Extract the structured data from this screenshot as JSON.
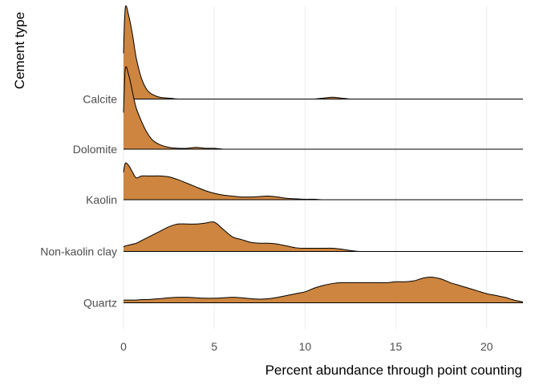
{
  "chart_data": {
    "type": "area",
    "subtype": "ridgeline-density",
    "xlabel": "Percent abundance through point counting",
    "ylabel": "Cement type",
    "xlim": [
      0,
      22
    ],
    "xticks": [
      0,
      5,
      10,
      15,
      20
    ],
    "grid": "vertical",
    "fill_color": "#CD853F",
    "line_color": "#000000",
    "categories": [
      "Calcite",
      "Dolomite",
      "Kaolin",
      "Non-kaolin clay",
      "Quartz"
    ],
    "x": [
      0,
      0.1,
      0.3,
      0.5,
      0.7,
      1.0,
      1.3,
      1.6,
      2.0,
      2.5,
      3.0,
      3.5,
      4.0,
      4.5,
      5.0,
      5.5,
      6.0,
      6.5,
      7.0,
      7.5,
      8.0,
      8.5,
      9.0,
      9.5,
      10.0,
      10.5,
      11.0,
      11.5,
      12.0,
      12.5,
      13.0,
      13.5,
      14.0,
      14.5,
      15.0,
      15.5,
      16.0,
      16.5,
      17.0,
      17.5,
      18.0,
      18.5,
      19.0,
      19.5,
      20.0,
      20.5,
      21.0,
      21.5,
      22.0
    ],
    "series": [
      {
        "name": "Calcite",
        "values": [
          0.5,
          1.0,
          0.9,
          0.7,
          0.45,
          0.22,
          0.1,
          0.05,
          0.02,
          0.01,
          0,
          0,
          0,
          0,
          0,
          0,
          0,
          0,
          0,
          0,
          0,
          0,
          0,
          0,
          0,
          0,
          0.01,
          0.02,
          0.01,
          0,
          0,
          0,
          0,
          0,
          0,
          0,
          0,
          0,
          0,
          0,
          0,
          0,
          0,
          0,
          0,
          0,
          0,
          0,
          0
        ]
      },
      {
        "name": "Dolomite",
        "values": [
          0.4,
          0.88,
          0.8,
          0.62,
          0.45,
          0.3,
          0.18,
          0.1,
          0.05,
          0.02,
          0.01,
          0.01,
          0.02,
          0.01,
          0.01,
          0,
          0,
          0,
          0,
          0,
          0,
          0,
          0,
          0,
          0,
          0,
          0,
          0,
          0,
          0,
          0,
          0,
          0,
          0,
          0,
          0,
          0,
          0,
          0,
          0,
          0,
          0,
          0,
          0,
          0,
          0,
          0,
          0,
          0
        ]
      },
      {
        "name": "Kaolin",
        "values": [
          0.3,
          0.4,
          0.37,
          0.3,
          0.24,
          0.26,
          0.26,
          0.26,
          0.26,
          0.25,
          0.22,
          0.18,
          0.14,
          0.1,
          0.07,
          0.05,
          0.04,
          0.03,
          0.03,
          0.035,
          0.04,
          0.03,
          0.015,
          0.01,
          0.005,
          0.005,
          0,
          0,
          0,
          0,
          0,
          0,
          0,
          0,
          0,
          0,
          0,
          0,
          0,
          0,
          0,
          0,
          0,
          0,
          0,
          0,
          0,
          0,
          0
        ]
      },
      {
        "name": "Non-kaolin clay",
        "values": [
          0.05,
          0.06,
          0.07,
          0.08,
          0.09,
          0.12,
          0.15,
          0.18,
          0.22,
          0.27,
          0.3,
          0.3,
          0.3,
          0.31,
          0.32,
          0.24,
          0.16,
          0.13,
          0.1,
          0.09,
          0.09,
          0.08,
          0.06,
          0.04,
          0.035,
          0.035,
          0.035,
          0.035,
          0.025,
          0.01,
          0,
          0,
          0,
          0,
          0,
          0,
          0,
          0,
          0,
          0,
          0,
          0,
          0,
          0,
          0,
          0,
          0,
          0,
          0
        ]
      },
      {
        "name": "Quartz",
        "values": [
          0.03,
          0.03,
          0.03,
          0.03,
          0.03,
          0.035,
          0.035,
          0.04,
          0.045,
          0.055,
          0.06,
          0.06,
          0.055,
          0.05,
          0.05,
          0.055,
          0.06,
          0.055,
          0.045,
          0.04,
          0.045,
          0.06,
          0.08,
          0.1,
          0.12,
          0.16,
          0.19,
          0.21,
          0.22,
          0.22,
          0.22,
          0.22,
          0.22,
          0.22,
          0.23,
          0.23,
          0.24,
          0.27,
          0.28,
          0.26,
          0.22,
          0.19,
          0.16,
          0.13,
          0.1,
          0.08,
          0.06,
          0.03,
          0.01
        ]
      }
    ]
  }
}
